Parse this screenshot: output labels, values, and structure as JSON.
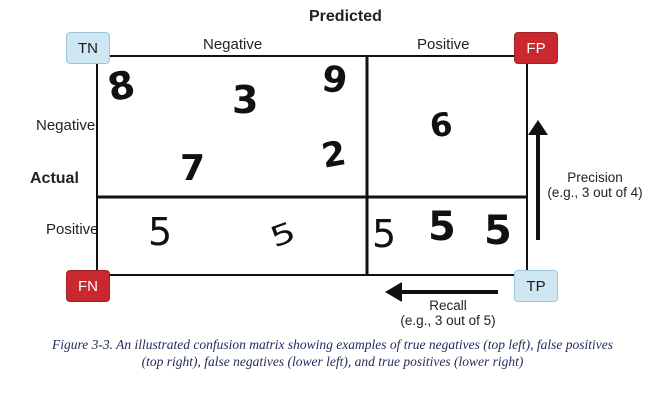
{
  "figure": {
    "title": "Predicted",
    "col_labels": [
      "Negative",
      "Positive"
    ],
    "row_labels": [
      "Negative",
      "Positive"
    ],
    "row_axis_label": "Actual",
    "callouts": {
      "tn": "TN",
      "fp": "FP",
      "fn": "FN",
      "tp": "TP"
    },
    "precision": {
      "label": "Precision",
      "example": "(e.g., 3 out of 4)"
    },
    "recall": {
      "label": "Recall",
      "example": "(e.g., 3 out of 5)"
    },
    "cells": {
      "tn": [
        "8",
        "3",
        "9",
        "7",
        "2"
      ],
      "fp": [
        "6"
      ],
      "fn": [
        "5",
        "5"
      ],
      "tp": [
        "5",
        "5",
        "5"
      ]
    },
    "colors": {
      "tn_callout": "#cfe7f3",
      "tp_callout": "#cfe7f3",
      "fp_callout": "#c8282e",
      "fn_callout": "#c8282e"
    }
  },
  "caption": {
    "line1": "Figure 3-3. An illustrated confusion matrix showing examples of true negatives (top left), false positives",
    "line2": "(top right), false negatives (lower left), and true positives (lower right)"
  }
}
